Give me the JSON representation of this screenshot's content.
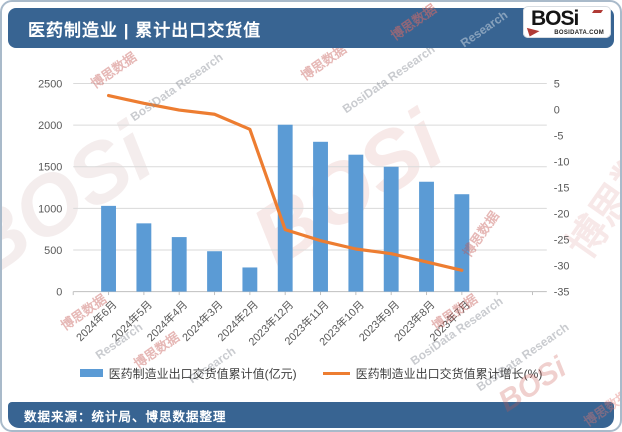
{
  "page": {
    "header": {
      "title": "医药制造业 | 累计出口交货值",
      "logo": {
        "text": "BOSi",
        "subtext": "BOSIDATA.COM"
      }
    },
    "footer": {
      "source": "数据来源：统计局、博思数据整理"
    },
    "colors": {
      "band_blue": "#386492",
      "bar_blue": "#5B9BD5",
      "line_orange": "#ED7D31",
      "grid_gray": "#DADADA",
      "axis_gray": "#BFBFBF",
      "label_gray": "#595959"
    }
  },
  "watermarks": {
    "cn": "博思数据",
    "en": "BosiData Research",
    "logo": "BOSi",
    "en_short": "Research"
  },
  "chart_data": {
    "type": "bar",
    "title": "医药制造业 | 累计出口交货值",
    "categories": [
      "2024年6月",
      "2024年5月",
      "2024年4月",
      "2024年3月",
      "2024年2月",
      "2023年12月",
      "2023年11月",
      "2023年10月",
      "2023年9月",
      "2023年8月",
      "2023年7月"
    ],
    "series": [
      {
        "name": "医药制造业出口交货值累计值(亿元)",
        "type": "bar",
        "axis": "left",
        "color": "#5B9BD5",
        "values": [
          1030,
          820,
          655,
          485,
          290,
          2005,
          1800,
          1645,
          1500,
          1320,
          1170
        ]
      },
      {
        "name": "医药制造业出口交货值累计增长(%)",
        "type": "line",
        "axis": "right",
        "color": "#ED7D31",
        "values": [
          2.7,
          1.2,
          -0.1,
          -0.9,
          -3.8,
          -23.1,
          -25.2,
          -26.8,
          -27.7,
          -29.3,
          -30.9
        ]
      }
    ],
    "left_axis": {
      "min": 0,
      "max": 2500,
      "step": 500,
      "ticks": [
        0,
        500,
        1000,
        1500,
        2000,
        2500
      ]
    },
    "right_axis": {
      "min": -35,
      "max": 5,
      "step": 5,
      "ticks": [
        5,
        0,
        -5,
        -10,
        -15,
        -20,
        -25,
        -30,
        -35
      ]
    },
    "grid": true,
    "legend_position": "bottom"
  }
}
